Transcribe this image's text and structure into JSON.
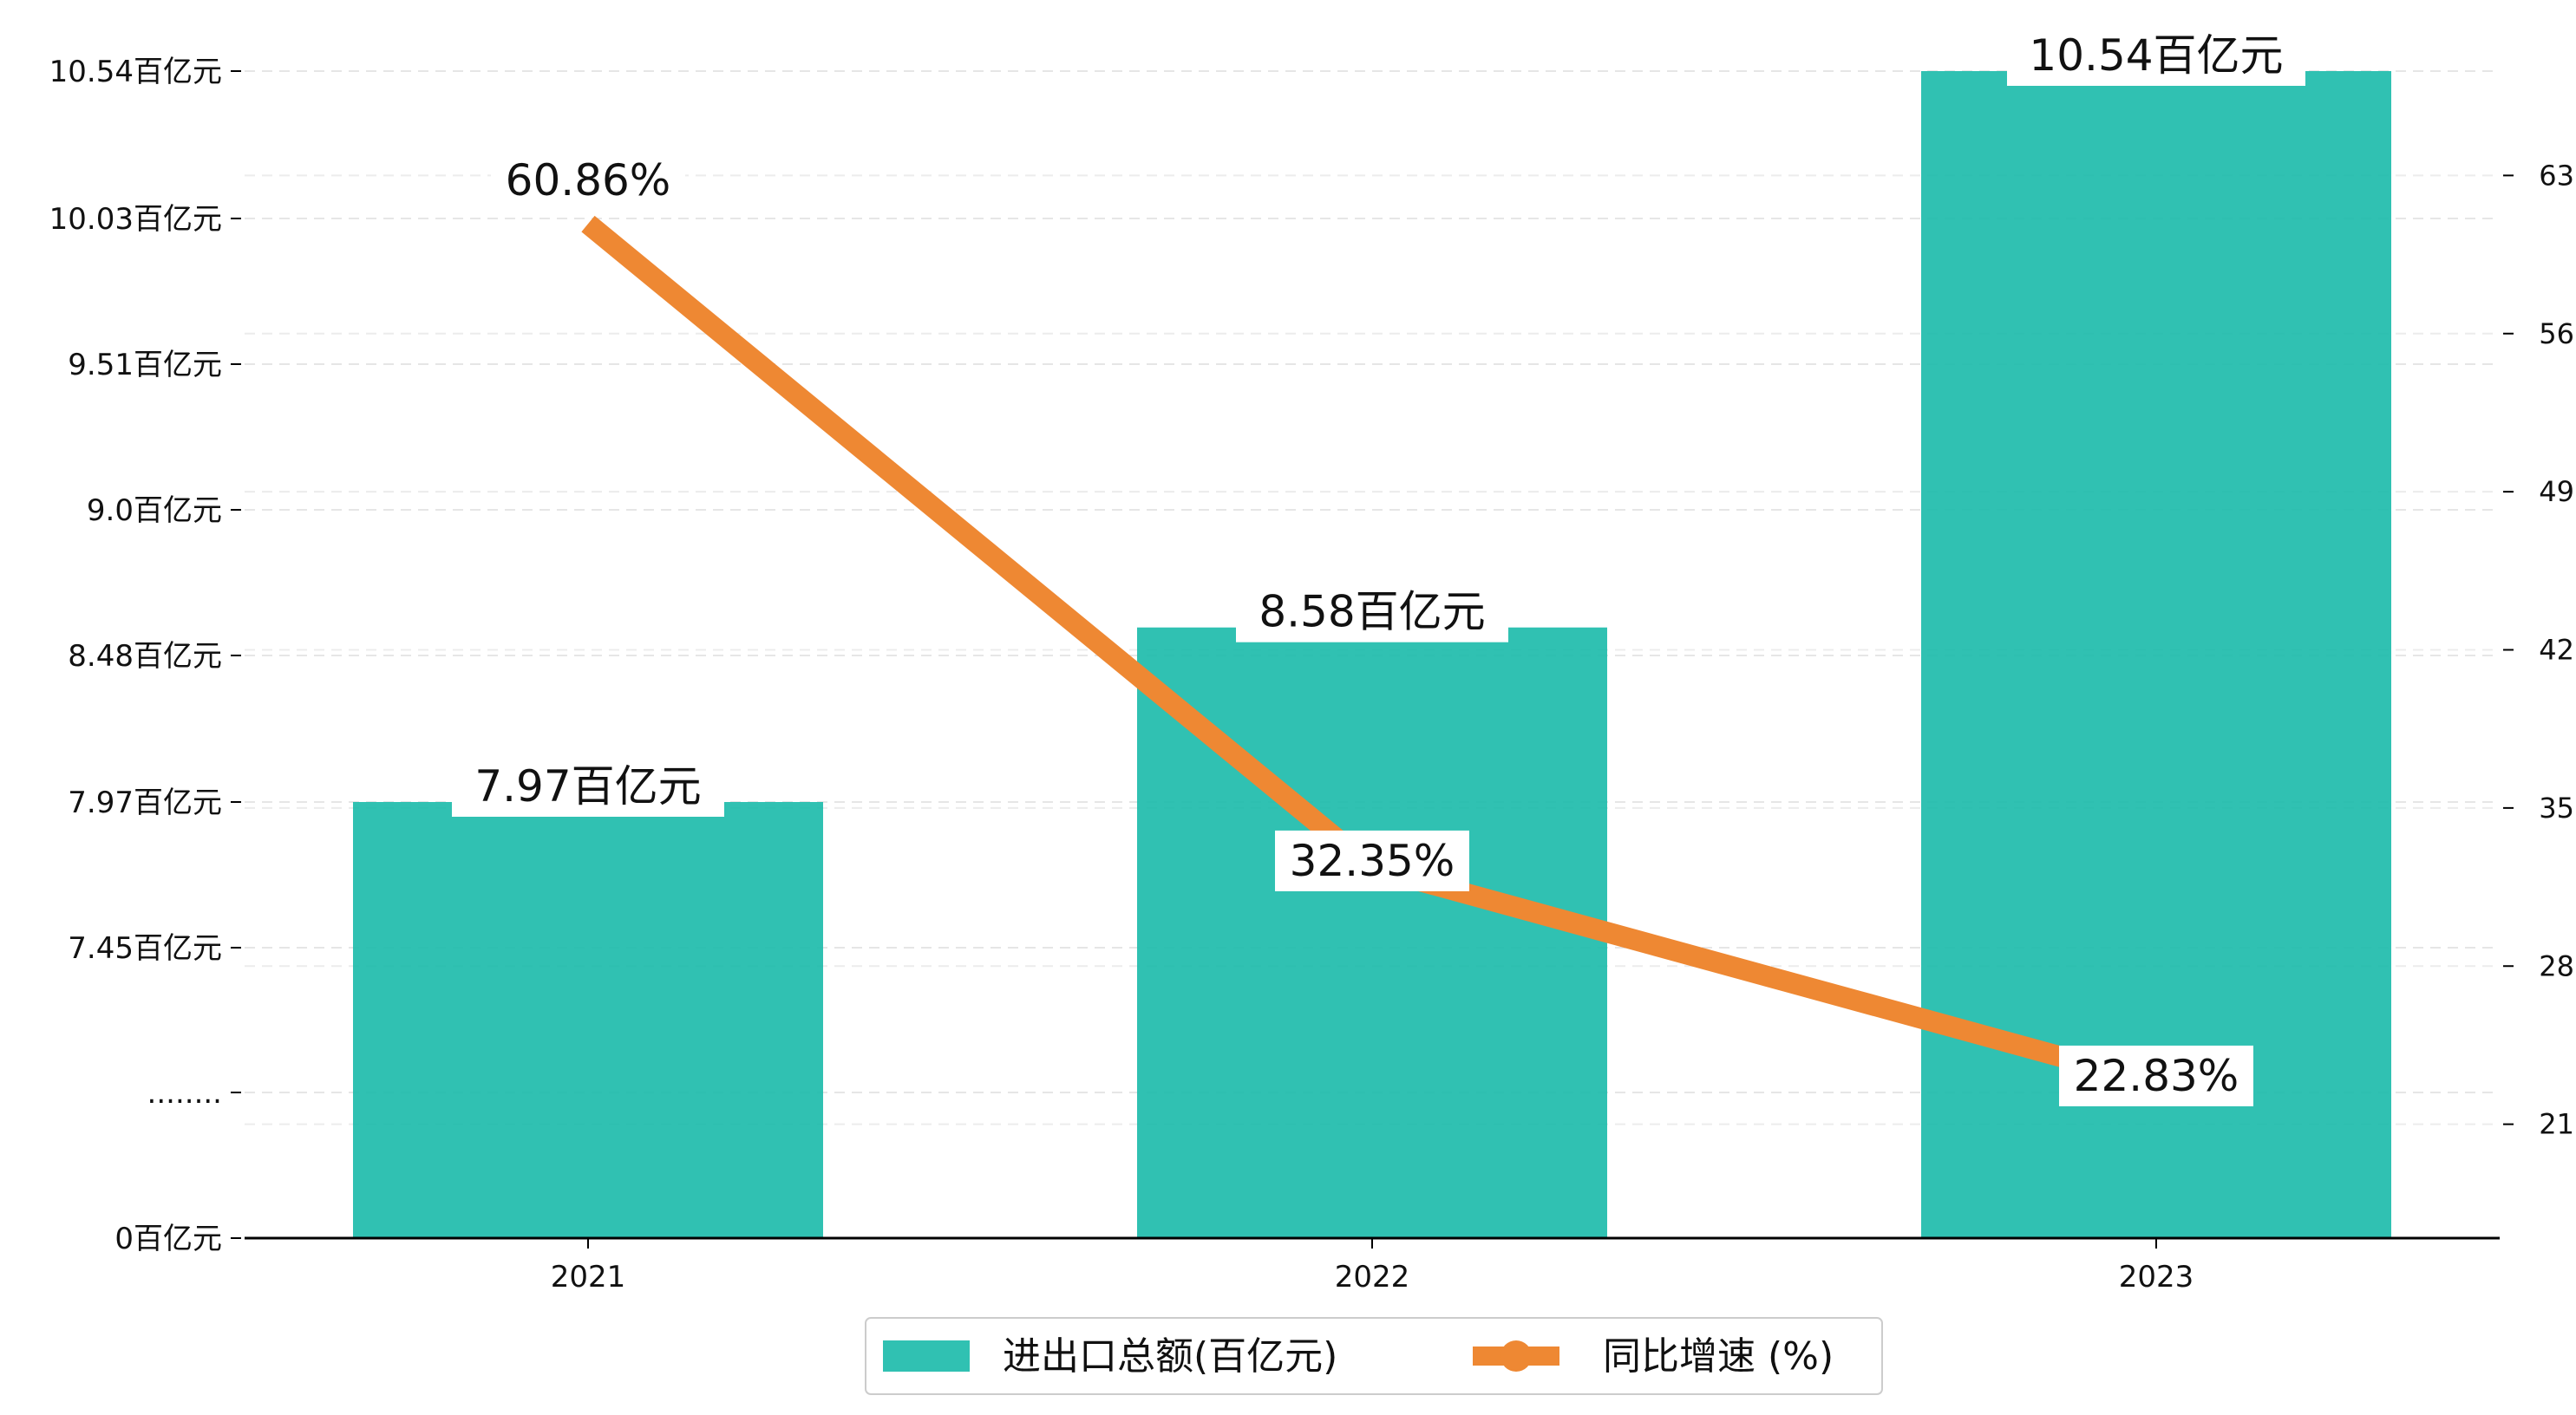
{
  "chart_data": {
    "type": "bar",
    "categories": [
      "2021",
      "2022",
      "2023"
    ],
    "series": [
      {
        "name": "进出口总额(百亿元)",
        "type": "bar",
        "axis": "left",
        "color": "#1ABAAA",
        "values": [
          7.97,
          8.58,
          10.54
        ],
        "labels": [
          "7.97百亿元",
          "8.58百亿元",
          "10.54百亿元"
        ]
      },
      {
        "name": "同比增速 (%)",
        "type": "line",
        "axis": "right",
        "color": "#EE8833",
        "values": [
          60.86,
          32.35,
          22.83
        ],
        "labels": [
          "60.86%",
          "32.35%",
          "22.83%"
        ]
      }
    ],
    "left_axis": {
      "ticks": [
        {
          "value": 0,
          "label": "0百亿元"
        },
        {
          "value": 6.93,
          "label": "........"
        },
        {
          "value": 7.45,
          "label": "7.45百亿元"
        },
        {
          "value": 7.97,
          "label": "7.97百亿元"
        },
        {
          "value": 8.48,
          "label": "8.48百亿元"
        },
        {
          "value": 9.0,
          "label": "9.0百亿元"
        },
        {
          "value": 9.51,
          "label": "9.51百亿元"
        },
        {
          "value": 10.03,
          "label": "10.03百亿元"
        },
        {
          "value": 10.54,
          "label": "10.54百亿元"
        }
      ]
    },
    "right_axis": {
      "ylim": [
        14,
        70
      ],
      "ticks": [
        21,
        28,
        35,
        42,
        49,
        56,
        63
      ]
    },
    "grid": true,
    "legend_position": "bottom-center"
  }
}
